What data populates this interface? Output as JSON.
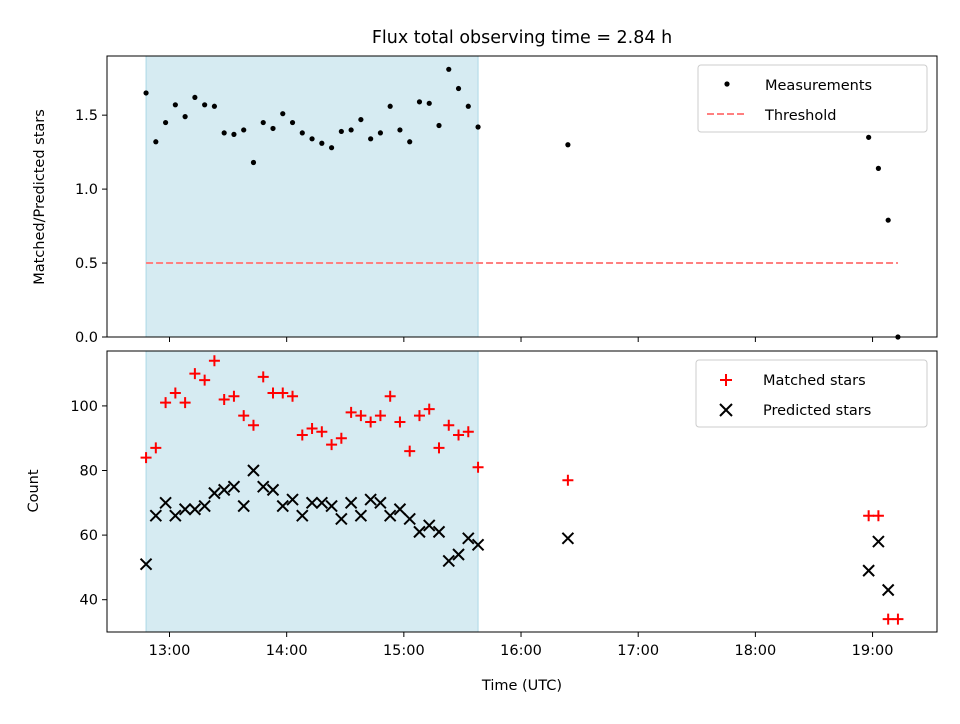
{
  "figure": {
    "title": "Flux total observing time = 2.84 h",
    "xlabel": "Time (UTC)"
  },
  "colors": {
    "shade": "#add8e6",
    "measurements": "#000000",
    "threshold": "#ff7f7f",
    "matched": "#ff0000",
    "predicted": "#000000"
  },
  "chart_data": [
    {
      "type": "scatter",
      "ylabel": "Matched/Predicted stars",
      "xlim": [
        "12:28",
        "19:33"
      ],
      "ylim": [
        0,
        1.9
      ],
      "xticks": [
        "13:00",
        "14:00",
        "15:00",
        "16:00",
        "17:00",
        "18:00",
        "19:00"
      ],
      "yticks": [
        0.0,
        0.5,
        1.0,
        1.5
      ],
      "ytick_labels": [
        "0.0",
        "0.5",
        "1.0",
        "1.5"
      ],
      "shaded_interval": [
        "12:48",
        "15:38"
      ],
      "legend": "top-right",
      "series": [
        {
          "name": "Measurements",
          "style": "dot",
          "points": [
            [
              "12:48",
              1.65
            ],
            [
              "12:53",
              1.32
            ],
            [
              "12:58",
              1.45
            ],
            [
              "13:03",
              1.57
            ],
            [
              "13:08",
              1.49
            ],
            [
              "13:13",
              1.62
            ],
            [
              "13:18",
              1.57
            ],
            [
              "13:23",
              1.56
            ],
            [
              "13:28",
              1.38
            ],
            [
              "13:33",
              1.37
            ],
            [
              "13:38",
              1.4
            ],
            [
              "13:43",
              1.18
            ],
            [
              "13:48",
              1.45
            ],
            [
              "13:53",
              1.41
            ],
            [
              "13:58",
              1.51
            ],
            [
              "14:03",
              1.45
            ],
            [
              "14:08",
              1.38
            ],
            [
              "14:13",
              1.34
            ],
            [
              "14:18",
              1.31
            ],
            [
              "14:23",
              1.28
            ],
            [
              "14:28",
              1.39
            ],
            [
              "14:33",
              1.4
            ],
            [
              "14:38",
              1.47
            ],
            [
              "14:43",
              1.34
            ],
            [
              "14:48",
              1.38
            ],
            [
              "14:53",
              1.56
            ],
            [
              "14:58",
              1.4
            ],
            [
              "15:03",
              1.32
            ],
            [
              "15:08",
              1.59
            ],
            [
              "15:13",
              1.58
            ],
            [
              "15:18",
              1.43
            ],
            [
              "15:23",
              1.81
            ],
            [
              "15:28",
              1.68
            ],
            [
              "15:33",
              1.56
            ],
            [
              "15:38",
              1.42
            ],
            [
              "16:24",
              1.3
            ],
            [
              "18:58",
              1.35
            ],
            [
              "19:03",
              1.14
            ],
            [
              "19:08",
              0.79
            ],
            [
              "19:13",
              0.0
            ]
          ]
        },
        {
          "name": "Threshold",
          "style": "dashed",
          "points": [
            [
              "12:48",
              0.5
            ],
            [
              "19:13",
              0.5
            ]
          ]
        }
      ]
    },
    {
      "type": "scatter",
      "ylabel": "Count",
      "xlim": [
        "12:28",
        "19:33"
      ],
      "ylim": [
        30,
        117
      ],
      "xticks": [
        "13:00",
        "14:00",
        "15:00",
        "16:00",
        "17:00",
        "18:00",
        "19:00"
      ],
      "xtick_labels": [
        "13:00",
        "14:00",
        "15:00",
        "16:00",
        "17:00",
        "18:00",
        "19:00"
      ],
      "yticks": [
        40,
        60,
        80,
        100
      ],
      "ytick_labels": [
        "40",
        "60",
        "80",
        "100"
      ],
      "shaded_interval": [
        "12:48",
        "15:38"
      ],
      "legend": "top-right",
      "series": [
        {
          "name": "Matched stars",
          "style": "plus",
          "points": [
            [
              "12:48",
              84
            ],
            [
              "12:53",
              87
            ],
            [
              "12:58",
              101
            ],
            [
              "13:03",
              104
            ],
            [
              "13:08",
              101
            ],
            [
              "13:13",
              110
            ],
            [
              "13:18",
              108
            ],
            [
              "13:23",
              114
            ],
            [
              "13:28",
              102
            ],
            [
              "13:33",
              103
            ],
            [
              "13:38",
              97
            ],
            [
              "13:43",
              94
            ],
            [
              "13:48",
              109
            ],
            [
              "13:53",
              104
            ],
            [
              "13:58",
              104
            ],
            [
              "14:03",
              103
            ],
            [
              "14:08",
              91
            ],
            [
              "14:13",
              93
            ],
            [
              "14:18",
              92
            ],
            [
              "14:23",
              88
            ],
            [
              "14:28",
              90
            ],
            [
              "14:33",
              98
            ],
            [
              "14:38",
              97
            ],
            [
              "14:43",
              95
            ],
            [
              "14:48",
              97
            ],
            [
              "14:53",
              103
            ],
            [
              "14:58",
              95
            ],
            [
              "15:03",
              86
            ],
            [
              "15:08",
              97
            ],
            [
              "15:13",
              99
            ],
            [
              "15:18",
              87
            ],
            [
              "15:23",
              94
            ],
            [
              "15:28",
              91
            ],
            [
              "15:33",
              92
            ],
            [
              "15:38",
              81
            ],
            [
              "16:24",
              77
            ],
            [
              "18:58",
              66
            ],
            [
              "19:03",
              66
            ],
            [
              "19:08",
              34
            ],
            [
              "19:13",
              34
            ]
          ]
        },
        {
          "name": "Predicted stars",
          "style": "x",
          "points": [
            [
              "12:48",
              51
            ],
            [
              "12:53",
              66
            ],
            [
              "12:58",
              70
            ],
            [
              "13:03",
              66
            ],
            [
              "13:08",
              68
            ],
            [
              "13:13",
              68
            ],
            [
              "13:18",
              69
            ],
            [
              "13:23",
              73
            ],
            [
              "13:28",
              74
            ],
            [
              "13:33",
              75
            ],
            [
              "13:38",
              69
            ],
            [
              "13:43",
              80
            ],
            [
              "13:48",
              75
            ],
            [
              "13:53",
              74
            ],
            [
              "13:58",
              69
            ],
            [
              "14:03",
              71
            ],
            [
              "14:08",
              66
            ],
            [
              "14:13",
              70
            ],
            [
              "14:18",
              70
            ],
            [
              "14:23",
              69
            ],
            [
              "14:28",
              65
            ],
            [
              "14:33",
              70
            ],
            [
              "14:38",
              66
            ],
            [
              "14:43",
              71
            ],
            [
              "14:48",
              70
            ],
            [
              "14:53",
              66
            ],
            [
              "14:58",
              68
            ],
            [
              "15:03",
              65
            ],
            [
              "15:08",
              61
            ],
            [
              "15:13",
              63
            ],
            [
              "15:18",
              61
            ],
            [
              "15:23",
              52
            ],
            [
              "15:28",
              54
            ],
            [
              "15:33",
              59
            ],
            [
              "15:38",
              57
            ],
            [
              "16:24",
              59
            ],
            [
              "18:58",
              49
            ],
            [
              "19:03",
              58
            ],
            [
              "19:08",
              43
            ]
          ]
        }
      ]
    }
  ]
}
